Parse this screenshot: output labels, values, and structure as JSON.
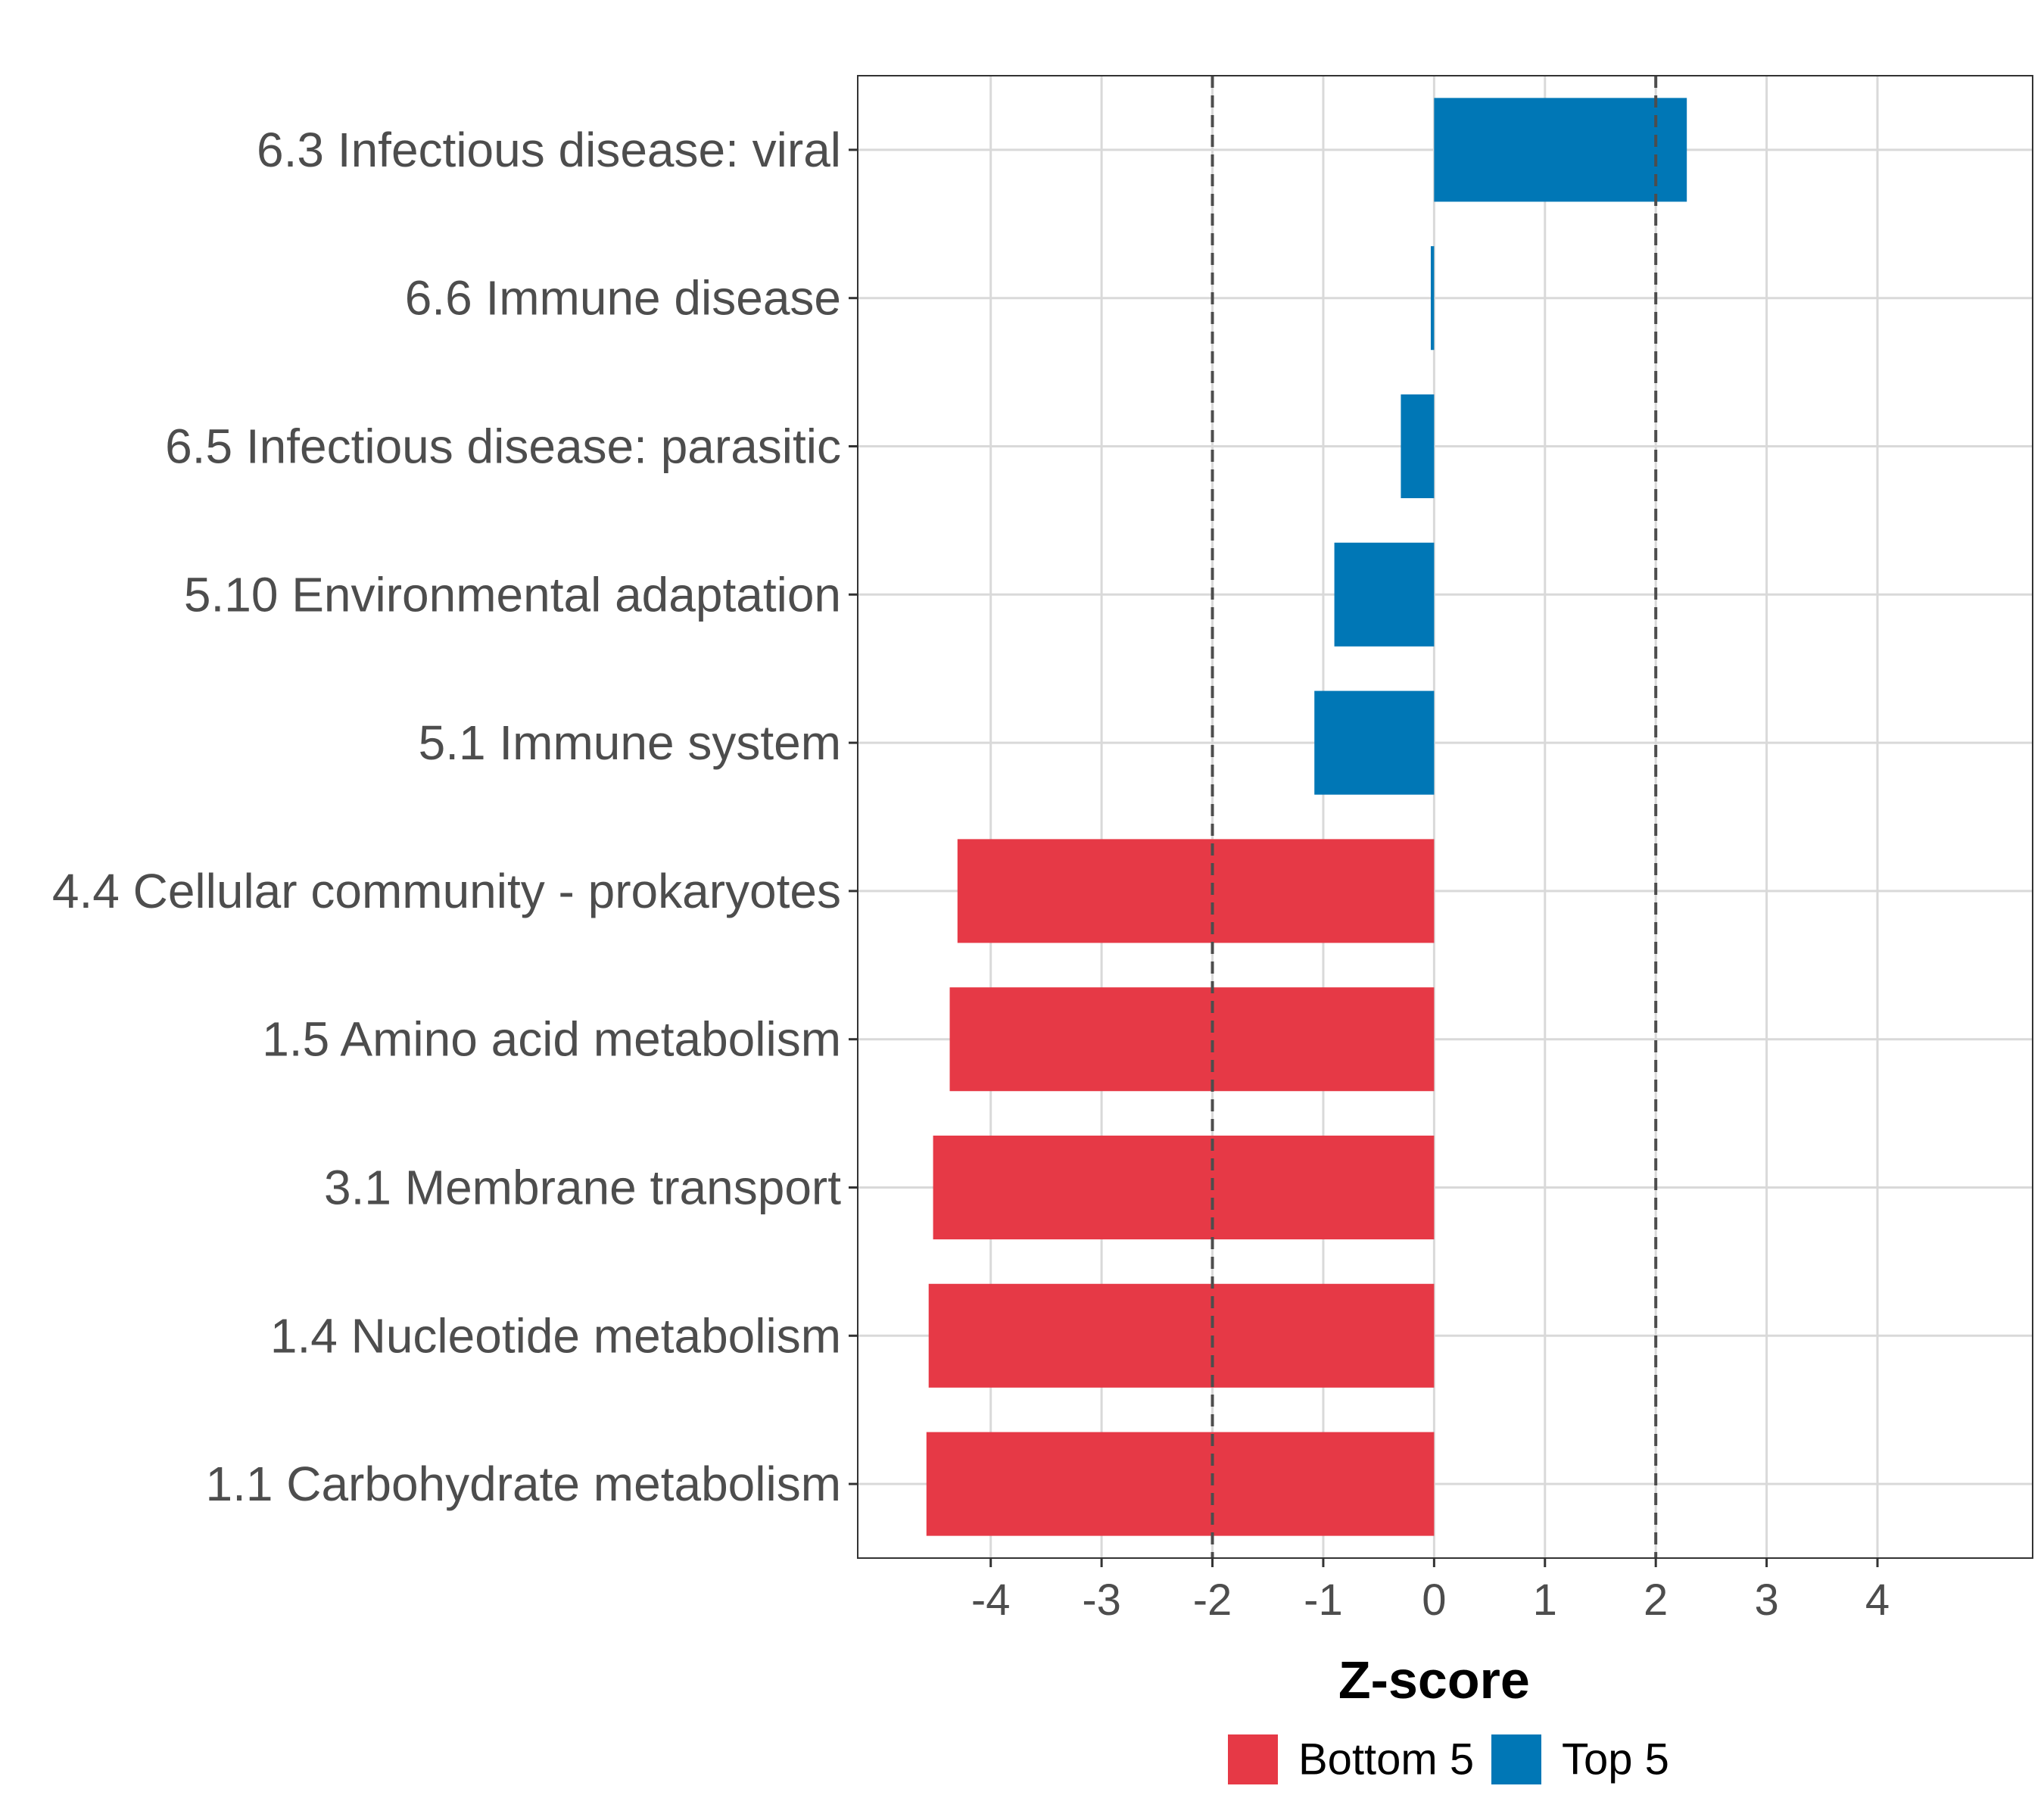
{
  "chart_data": {
    "type": "bar",
    "orientation": "horizontal",
    "title": "",
    "xlabel": "Z-score",
    "ylabel": "",
    "xlim": [
      -5.2,
      5.4
    ],
    "x_ticks": [
      -4,
      -3,
      -2,
      -1,
      0,
      1,
      2,
      3,
      4
    ],
    "reference_lines": [
      -2,
      2
    ],
    "grid": true,
    "legend_position": "bottom",
    "colors": {
      "Bottom 5": "#E63946",
      "Top 5": "#0077B6",
      "grid": "#d9d9d9",
      "refline": "#4d4d4d"
    },
    "categories": [
      "6.3 Infectious disease: viral",
      "6.6 Immune disease",
      "6.5 Infectious disease: parasitic",
      "5.10 Environmental adaptation",
      "5.1 Immune system",
      "4.4 Cellular community - prokaryotes",
      "1.5 Amino acid metabolism",
      "3.1 Membrane transport",
      "1.4 Nucleotide metabolism",
      "1.1 Carbohydrate metabolism"
    ],
    "values": [
      2.28,
      -0.03,
      -0.3,
      -0.9,
      -1.08,
      -4.3,
      -4.37,
      -4.52,
      -4.56,
      -4.58
    ],
    "groups": [
      "Top 5",
      "Top 5",
      "Top 5",
      "Top 5",
      "Top 5",
      "Bottom 5",
      "Bottom 5",
      "Bottom 5",
      "Bottom 5",
      "Bottom 5"
    ],
    "legend": [
      "Bottom 5",
      "Top 5"
    ]
  }
}
